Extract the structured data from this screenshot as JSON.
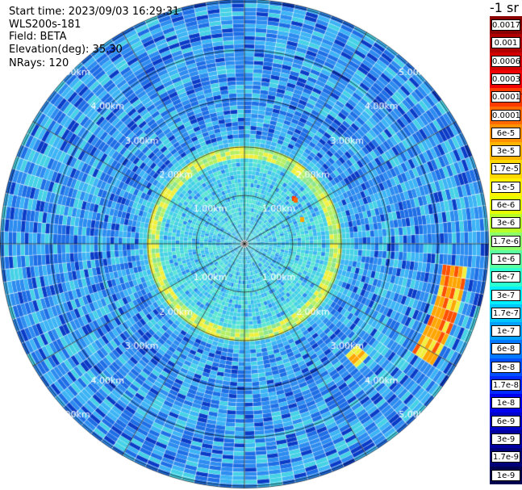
{
  "info": {
    "start_time": "Start time: 2023/09/03 16:29:31",
    "device": "WLS200s-181",
    "field": "Field: BETA",
    "elevation": "Elevation(deg): 35.30",
    "nrays": "NRays: 120"
  },
  "colorbar": {
    "title": "-1 sr",
    "labels": [
      "0.0017",
      "0.001",
      "0.0006",
      "0.0003",
      "0.00017",
      "0.0001",
      "6e-5",
      "3e-5",
      "1.7e-5",
      "1e-5",
      "6e-6",
      "3e-6",
      "1.7e-6",
      "1e-6",
      "6e-7",
      "3e-7",
      "1.7e-7",
      "1e-7",
      "6e-8",
      "3e-8",
      "1.7e-8",
      "1e-8",
      "6e-9",
      "3e-9",
      "1.7e-9",
      "1e-9"
    ],
    "colors": [
      "#8b0000",
      "#b00000",
      "#d40000",
      "#f00000",
      "#ff3a00",
      "#ff6a00",
      "#ff9000",
      "#ffb400",
      "#ffd800",
      "#fff200",
      "#e6ff00",
      "#b8ff2a",
      "#8cff6a",
      "#5affa0",
      "#2cffd0",
      "#00f0ff",
      "#00c8ff",
      "#00a0ff",
      "#0078ff",
      "#0050ff",
      "#0028ff",
      "#0000f0",
      "#0000c8",
      "#0000a0",
      "#000078",
      "#000050"
    ]
  },
  "range_rings": [
    "1.00km",
    "2.00km",
    "3.00km",
    "4.00km",
    "5.00km"
  ],
  "chart_data": {
    "type": "polar-ppi",
    "title": "",
    "field": "BETA",
    "units": "sr-1",
    "elevation_deg": 35.3,
    "nrays": 120,
    "range_rings_km": [
      1,
      2,
      3,
      4,
      5
    ],
    "color_scale": "log",
    "color_range": [
      1e-09,
      0.0017
    ],
    "features": [
      {
        "name": "background",
        "value_range": [
          1e-08,
          1e-07
        ]
      },
      {
        "name": "near-field",
        "range_km": [
          0,
          1.6
        ],
        "value_range": [
          1e-07,
          3e-07
        ]
      },
      {
        "name": "ring",
        "range_km": [
          1.7,
          2.0
        ],
        "value_range": [
          3e-07,
          6e-06
        ]
      },
      {
        "name": "strong-returns",
        "azimuth_deg": [
          95,
          120
        ],
        "range_km": [
          5.5,
          6.6
        ],
        "value_range": [
          1e-05,
          0.0001
        ]
      }
    ]
  }
}
